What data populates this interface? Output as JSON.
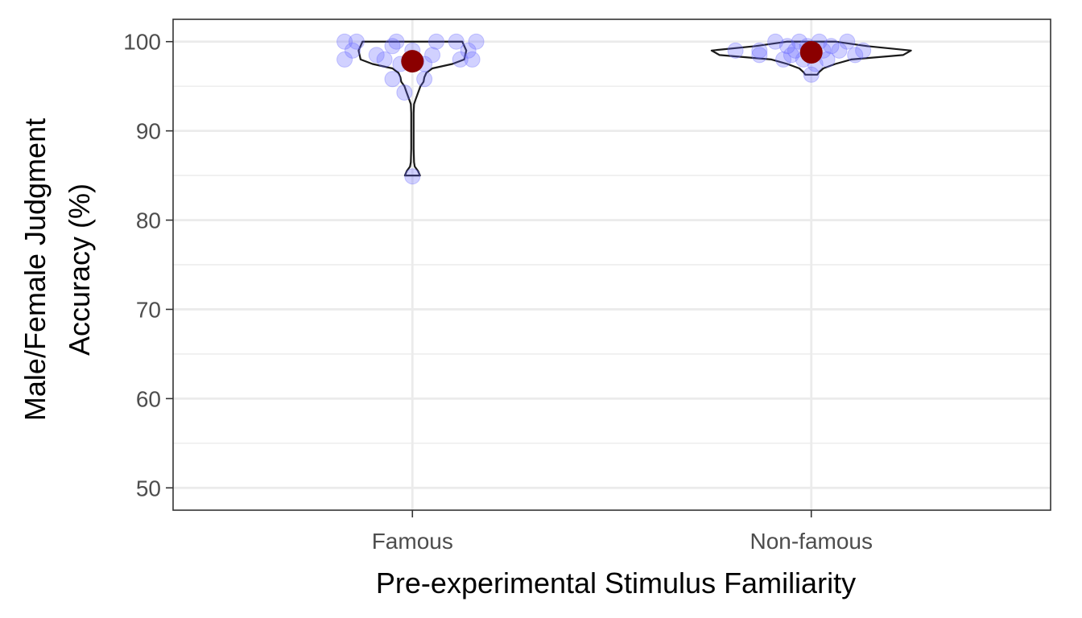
{
  "chart_data": {
    "type": "violin",
    "title": "",
    "xlabel": "Pre-experimental Stimulus Familiarity",
    "ylabel_lines": [
      "Male/Female Judgment",
      "Accuracy (%)"
    ],
    "categories": [
      "Famous",
      "Non-famous"
    ],
    "ylim": [
      47.5,
      102.5
    ],
    "yticks": [
      50,
      60,
      70,
      80,
      90,
      100
    ],
    "grid": true,
    "point_color": "#6666ff",
    "mean_color": "#8b0000",
    "violin_color": "#1a1a1a",
    "groups": [
      {
        "category": "Famous",
        "points": [
          [
            -0.17,
            100
          ],
          [
            -0.14,
            100
          ],
          [
            -0.17,
            98
          ],
          [
            -0.15,
            99
          ],
          [
            -0.09,
            98.5
          ],
          [
            -0.07,
            98
          ],
          [
            -0.05,
            99.5
          ],
          [
            -0.04,
            100
          ],
          [
            -0.05,
            95.8
          ],
          [
            -0.03,
            97.5
          ],
          [
            -0.02,
            94.3
          ],
          [
            0.0,
            99
          ],
          [
            0.01,
            97.8
          ],
          [
            0.03,
            97.5
          ],
          [
            0.03,
            95.8
          ],
          [
            0.05,
            98.5
          ],
          [
            0.06,
            100
          ],
          [
            0.11,
            100
          ],
          [
            0.12,
            98
          ],
          [
            0.14,
            99
          ],
          [
            0.15,
            98
          ],
          [
            0.16,
            100
          ],
          [
            0.0,
            84.9
          ]
        ],
        "mean": 97.8,
        "violin": [
          [
            100,
            0.125
          ],
          [
            99,
            0.135
          ],
          [
            98,
            0.13
          ],
          [
            97.5,
            0.1
          ],
          [
            97,
            0.05
          ],
          [
            96.5,
            0.035
          ],
          [
            96,
            0.03
          ],
          [
            95.5,
            0.028
          ],
          [
            95,
            0.02
          ],
          [
            94.5,
            0.016
          ],
          [
            94,
            0.012
          ],
          [
            93.5,
            0.008
          ],
          [
            93,
            0.004
          ],
          [
            92,
            0.003
          ],
          [
            90,
            0.003
          ],
          [
            88,
            0.003
          ],
          [
            86.5,
            0.004
          ],
          [
            86,
            0.006
          ],
          [
            85.5,
            0.014
          ],
          [
            85,
            0.019
          ]
        ]
      },
      {
        "category": "Non-famous",
        "points": [
          [
            -0.19,
            99
          ],
          [
            -0.13,
            98.5
          ],
          [
            -0.13,
            99
          ],
          [
            -0.09,
            100
          ],
          [
            -0.07,
            98
          ],
          [
            -0.06,
            99.5
          ],
          [
            -0.05,
            98.5
          ],
          [
            -0.04,
            99
          ],
          [
            -0.03,
            100
          ],
          [
            -0.02,
            98
          ],
          [
            -0.01,
            99.5
          ],
          [
            0.0,
            96.3
          ],
          [
            0.01,
            97.5
          ],
          [
            0.02,
            100
          ],
          [
            0.03,
            99
          ],
          [
            0.04,
            98
          ],
          [
            0.05,
            99.5
          ],
          [
            0.07,
            99
          ],
          [
            0.09,
            100
          ],
          [
            0.11,
            98.5
          ],
          [
            0.13,
            99
          ]
        ],
        "mean": 98.8,
        "violin": [
          [
            100,
            0.06
          ],
          [
            99.5,
            0.14
          ],
          [
            99,
            0.25
          ],
          [
            98.5,
            0.23
          ],
          [
            98,
            0.1
          ],
          [
            97.5,
            0.06
          ],
          [
            97,
            0.03
          ],
          [
            96.6,
            0.02
          ],
          [
            96.3,
            0.015
          ]
        ]
      }
    ]
  }
}
